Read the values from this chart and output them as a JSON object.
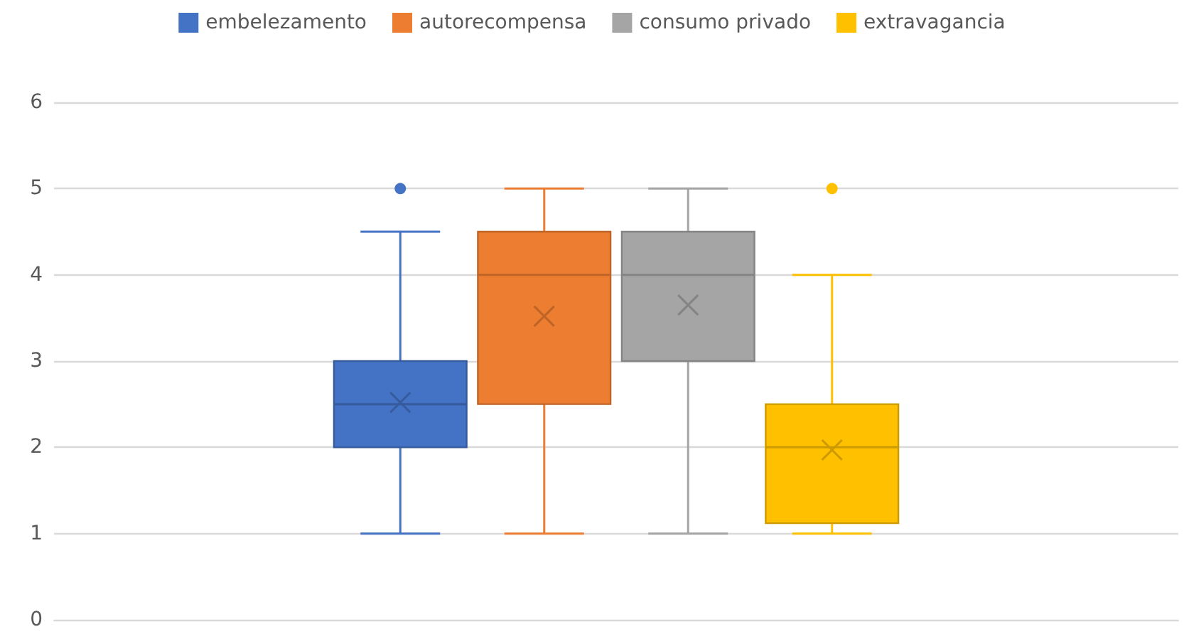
{
  "chart_data": {
    "type": "box",
    "categories": [
      null
    ],
    "legend": "top",
    "grid": "y",
    "tick_labels": "y",
    "ylim": [
      0,
      6
    ],
    "yticks": [
      0,
      1,
      2,
      3,
      4,
      5,
      6
    ],
    "marker": "circle",
    "series": [
      {
        "name": "embelezamento",
        "color": "#4472c4",
        "boxes": [
          {
            "low": 1,
            "q1": 2,
            "median": 2.5,
            "q3": 3,
            "high": 4.5,
            "mean": 2.52,
            "outliers": [
              5
            ]
          }
        ]
      },
      {
        "name": "autorecompensa",
        "color": "#ed7d31",
        "boxes": [
          {
            "low": 1,
            "q1": 2.5,
            "median": 4,
            "q3": 4.5,
            "high": 5,
            "mean": 3.52
          }
        ]
      },
      {
        "name": "consumo privado",
        "color": "#a5a5a5",
        "boxes": [
          {
            "low": 1,
            "q1": 3,
            "median": 4,
            "q3": 4.5,
            "high": 5,
            "mean": 3.65
          }
        ]
      },
      {
        "name": "extravagancia",
        "color": "#ffc000",
        "boxes": [
          {
            "low": 1,
            "q1": 1.12,
            "median": 2,
            "q3": 2.5,
            "high": 4,
            "mean": 1.97,
            "outliers": [
              5
            ]
          }
        ]
      }
    ]
  }
}
